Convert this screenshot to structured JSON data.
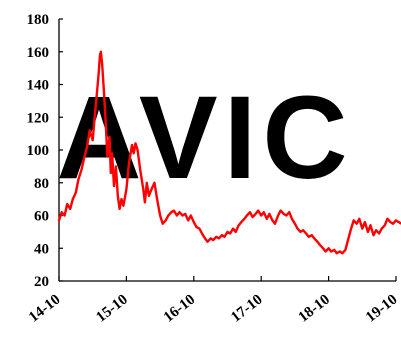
{
  "chart_data": {
    "type": "line",
    "title": "",
    "xlabel": "",
    "ylabel": "",
    "ylim": [
      20,
      180
    ],
    "yticks": [
      20,
      40,
      60,
      80,
      100,
      120,
      140,
      160,
      180
    ],
    "xlim": [
      "2014-10",
      "2019-10"
    ],
    "xticks": [
      {
        "date": "2014-10",
        "label": "14-10"
      },
      {
        "date": "2015-10",
        "label": "15-10"
      },
      {
        "date": "2016-10",
        "label": "16-10"
      },
      {
        "date": "2017-10",
        "label": "17-10"
      },
      {
        "date": "2018-10",
        "label": "18-10"
      },
      {
        "date": "2019-10",
        "label": "19-10"
      }
    ],
    "grid": false,
    "legend": "none",
    "series": [
      {
        "color": "#ff0000",
        "points": [
          [
            "2014-10-01",
            57
          ],
          [
            "2014-10-15",
            62
          ],
          [
            "2014-11-01",
            60
          ],
          [
            "2014-11-15",
            67
          ],
          [
            "2014-12-01",
            64
          ],
          [
            "2014-12-15",
            70
          ],
          [
            "2015-01-01",
            74
          ],
          [
            "2015-01-15",
            82
          ],
          [
            "2015-02-01",
            88
          ],
          [
            "2015-02-15",
            95
          ],
          [
            "2015-03-01",
            102
          ],
          [
            "2015-03-15",
            112
          ],
          [
            "2015-04-01",
            106
          ],
          [
            "2015-04-10",
            118
          ],
          [
            "2015-04-20",
            130
          ],
          [
            "2015-05-01",
            144
          ],
          [
            "2015-05-10",
            158
          ],
          [
            "2015-05-15",
            160
          ],
          [
            "2015-05-22",
            152
          ],
          [
            "2015-06-01",
            136
          ],
          [
            "2015-06-10",
            118
          ],
          [
            "2015-06-20",
            96
          ],
          [
            "2015-07-01",
            108
          ],
          [
            "2015-07-08",
            86
          ],
          [
            "2015-07-15",
            98
          ],
          [
            "2015-07-25",
            78
          ],
          [
            "2015-08-05",
            90
          ],
          [
            "2015-08-15",
            72
          ],
          [
            "2015-08-25",
            64
          ],
          [
            "2015-09-05",
            70
          ],
          [
            "2015-09-15",
            66
          ],
          [
            "2015-10-01",
            76
          ],
          [
            "2015-10-15",
            92
          ],
          [
            "2015-11-01",
            103
          ],
          [
            "2015-11-10",
            98
          ],
          [
            "2015-11-20",
            104
          ],
          [
            "2015-12-01",
            100
          ],
          [
            "2015-12-15",
            88
          ],
          [
            "2016-01-01",
            76
          ],
          [
            "2016-01-10",
            68
          ],
          [
            "2016-01-20",
            80
          ],
          [
            "2016-02-01",
            72
          ],
          [
            "2016-02-15",
            76
          ],
          [
            "2016-03-01",
            80
          ],
          [
            "2016-03-15",
            70
          ],
          [
            "2016-04-01",
            60
          ],
          [
            "2016-04-15",
            55
          ],
          [
            "2016-05-01",
            57
          ],
          [
            "2016-05-15",
            60
          ],
          [
            "2016-06-01",
            62
          ],
          [
            "2016-06-15",
            63
          ],
          [
            "2016-07-01",
            60
          ],
          [
            "2016-07-15",
            62
          ],
          [
            "2016-08-01",
            60
          ],
          [
            "2016-08-15",
            61
          ],
          [
            "2016-09-01",
            57
          ],
          [
            "2016-09-15",
            60
          ],
          [
            "2016-10-01",
            56
          ],
          [
            "2016-10-15",
            53
          ],
          [
            "2016-11-01",
            52
          ],
          [
            "2016-11-15",
            49
          ],
          [
            "2016-12-01",
            46
          ],
          [
            "2016-12-15",
            44
          ],
          [
            "2017-01-01",
            46
          ],
          [
            "2017-01-15",
            45
          ],
          [
            "2017-02-01",
            47
          ],
          [
            "2017-02-15",
            46
          ],
          [
            "2017-03-01",
            48
          ],
          [
            "2017-03-15",
            47
          ],
          [
            "2017-04-01",
            50
          ],
          [
            "2017-04-15",
            49
          ],
          [
            "2017-05-01",
            52
          ],
          [
            "2017-05-15",
            50
          ],
          [
            "2017-06-01",
            54
          ],
          [
            "2017-06-15",
            56
          ],
          [
            "2017-07-01",
            58
          ],
          [
            "2017-07-15",
            60
          ],
          [
            "2017-08-01",
            62
          ],
          [
            "2017-08-15",
            59
          ],
          [
            "2017-09-01",
            61
          ],
          [
            "2017-09-15",
            63
          ],
          [
            "2017-10-01",
            60
          ],
          [
            "2017-10-15",
            62
          ],
          [
            "2017-11-01",
            58
          ],
          [
            "2017-11-15",
            61
          ],
          [
            "2017-12-01",
            57
          ],
          [
            "2017-12-15",
            55
          ],
          [
            "2018-01-01",
            60
          ],
          [
            "2018-01-15",
            63
          ],
          [
            "2018-02-01",
            61
          ],
          [
            "2018-02-15",
            60
          ],
          [
            "2018-03-01",
            62
          ],
          [
            "2018-03-15",
            58
          ],
          [
            "2018-04-01",
            55
          ],
          [
            "2018-04-15",
            52
          ],
          [
            "2018-05-01",
            50
          ],
          [
            "2018-05-15",
            51
          ],
          [
            "2018-06-01",
            49
          ],
          [
            "2018-06-15",
            47
          ],
          [
            "2018-07-01",
            48
          ],
          [
            "2018-07-15",
            46
          ],
          [
            "2018-08-01",
            44
          ],
          [
            "2018-08-15",
            42
          ],
          [
            "2018-09-01",
            40
          ],
          [
            "2018-09-15",
            38
          ],
          [
            "2018-10-01",
            40
          ],
          [
            "2018-10-15",
            38
          ],
          [
            "2018-11-01",
            39
          ],
          [
            "2018-11-15",
            37
          ],
          [
            "2018-12-01",
            38
          ],
          [
            "2018-12-15",
            37
          ],
          [
            "2019-01-01",
            39
          ],
          [
            "2019-01-15",
            45
          ],
          [
            "2019-02-01",
            52
          ],
          [
            "2019-02-15",
            57
          ],
          [
            "2019-03-01",
            55
          ],
          [
            "2019-03-15",
            58
          ],
          [
            "2019-04-01",
            52
          ],
          [
            "2019-04-15",
            56
          ],
          [
            "2019-05-01",
            50
          ],
          [
            "2019-05-15",
            54
          ],
          [
            "2019-06-01",
            48
          ],
          [
            "2019-06-15",
            51
          ],
          [
            "2019-07-01",
            49
          ],
          [
            "2019-07-15",
            52
          ],
          [
            "2019-08-01",
            54
          ],
          [
            "2019-08-15",
            58
          ],
          [
            "2019-09-01",
            56
          ],
          [
            "2019-09-15",
            55
          ],
          [
            "2019-10-01",
            57
          ],
          [
            "2019-10-15",
            56
          ],
          [
            "2019-11-01",
            55
          ]
        ]
      }
    ]
  },
  "watermark": {
    "text": "AVIC",
    "color": "#c7e6f3"
  }
}
